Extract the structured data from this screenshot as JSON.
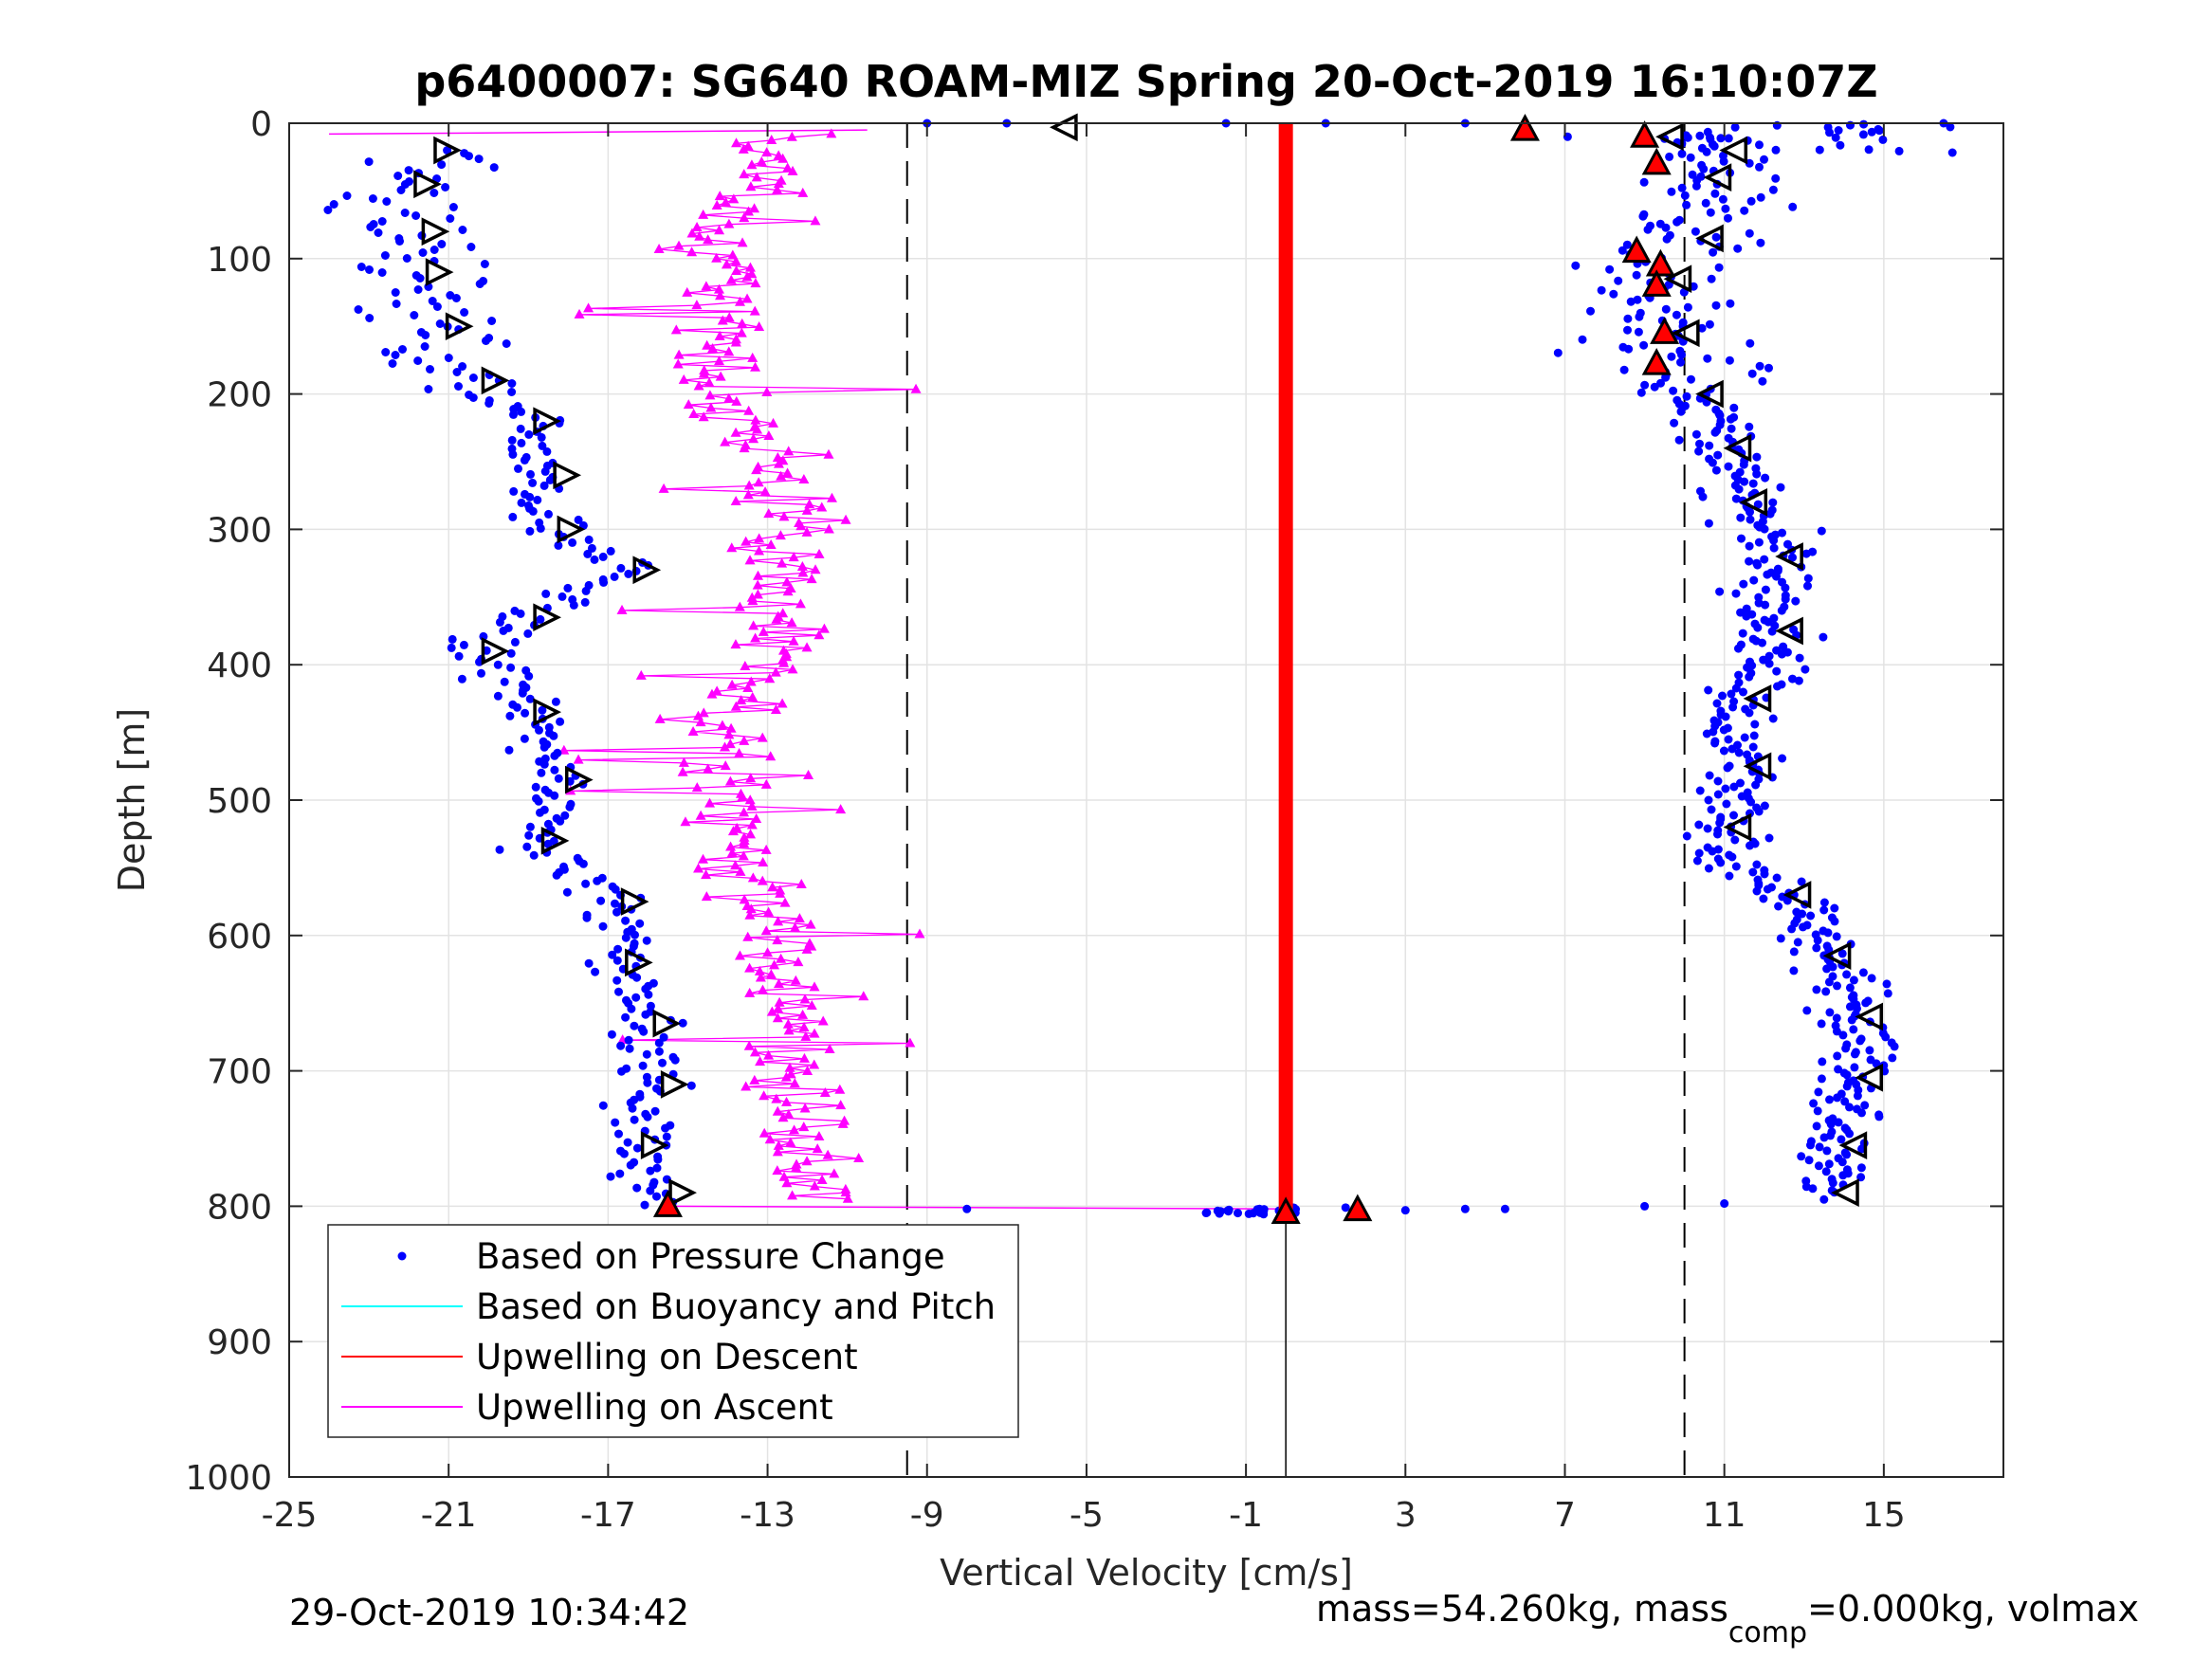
{
  "chart_data": {
    "type": "scatter",
    "title": "p6400007: SG640 ROAM-MIZ Spring 20-Oct-2019 16:10:07Z",
    "xlabel": "Vertical Velocity [cm/s]",
    "ylabel": "Depth [m]",
    "xlim": [
      -25,
      18
    ],
    "ylim": [
      1000,
      0
    ],
    "y_reversed": true,
    "grid": true,
    "x_ticks": [
      -25,
      -21,
      -17,
      -13,
      -9,
      -5,
      -1,
      3,
      7,
      11,
      15
    ],
    "y_ticks": [
      0,
      100,
      200,
      300,
      400,
      500,
      600,
      700,
      800,
      900,
      1000
    ],
    "legend": {
      "placement": "lower-left",
      "entries": [
        {
          "label": "Based on Pressure Change",
          "color": "#0000ff",
          "marker": "dot"
        },
        {
          "label": "Based on Buoyancy and Pitch",
          "color": "#00ffff",
          "marker": "line"
        },
        {
          "label": "Upwelling on Descent",
          "color": "#ff0000",
          "marker": "line"
        },
        {
          "label": "Upwelling on Ascent",
          "color": "#ff00ff",
          "marker": "line"
        }
      ]
    },
    "reference_lines": {
      "dashed_x": [
        -9.5,
        10
      ],
      "solid_x": [
        0
      ]
    },
    "series": [
      {
        "name": "Based on Pressure Change",
        "color": "#0000ff",
        "marker": "dot",
        "descent_points": [
          [
            -21.5,
            20
          ],
          [
            -21,
            30
          ],
          [
            -22,
            45
          ],
          [
            -22.5,
            60
          ],
          [
            -21.8,
            80
          ],
          [
            -22.3,
            95
          ],
          [
            -21.7,
            110
          ],
          [
            -21.5,
            130
          ],
          [
            -21.2,
            150
          ],
          [
            -21.4,
            170
          ],
          [
            -20.3,
            190
          ],
          [
            -19.5,
            205
          ],
          [
            -19,
            220
          ],
          [
            -18.7,
            240
          ],
          [
            -18.5,
            260
          ],
          [
            -18.8,
            280
          ],
          [
            -18.4,
            300
          ],
          [
            -17.5,
            315
          ],
          [
            -16.5,
            330
          ],
          [
            -17.8,
            345
          ],
          [
            -19,
            365
          ],
          [
            -20,
            380
          ],
          [
            -20.3,
            390
          ],
          [
            -19.5,
            410
          ],
          [
            -19,
            435
          ],
          [
            -18.7,
            460
          ],
          [
            -18.2,
            485
          ],
          [
            -18.5,
            510
          ],
          [
            -18.8,
            530
          ],
          [
            -17.8,
            555
          ],
          [
            -16.8,
            575
          ],
          [
            -16.6,
            600
          ],
          [
            -16.7,
            620
          ],
          [
            -16.3,
            645
          ],
          [
            -16,
            665
          ],
          [
            -15.9,
            690
          ],
          [
            -15.8,
            710
          ],
          [
            -16.1,
            730
          ],
          [
            -16.3,
            755
          ],
          [
            -16,
            775
          ],
          [
            -15.6,
            790
          ],
          [
            -15.5,
            800
          ]
        ],
        "ascent_points": [
          [
            9.3,
            10
          ],
          [
            11,
            20
          ],
          [
            10.5,
            40
          ],
          [
            10,
            65
          ],
          [
            10.3,
            85
          ],
          [
            9.3,
            100
          ],
          [
            9.5,
            115
          ],
          [
            9.6,
            135
          ],
          [
            9.7,
            155
          ],
          [
            9.5,
            175
          ],
          [
            10.3,
            200
          ],
          [
            10.6,
            215
          ],
          [
            11,
            240
          ],
          [
            11.7,
            260
          ],
          [
            11.4,
            280
          ],
          [
            12,
            300
          ],
          [
            12.3,
            320
          ],
          [
            12,
            350
          ],
          [
            12.3,
            375
          ],
          [
            12,
            400
          ],
          [
            11.5,
            425
          ],
          [
            11,
            450
          ],
          [
            11.5,
            475
          ],
          [
            11.3,
            500
          ],
          [
            11,
            520
          ],
          [
            11.5,
            545
          ],
          [
            12.5,
            570
          ],
          [
            13.2,
            590
          ],
          [
            13.5,
            615
          ],
          [
            14.1,
            635
          ],
          [
            14.3,
            660
          ],
          [
            14.5,
            685
          ],
          [
            14.3,
            705
          ],
          [
            14,
            730
          ],
          [
            13.9,
            755
          ],
          [
            13.8,
            775
          ],
          [
            13.7,
            790
          ]
        ],
        "surface_points": [
          [
            -9,
            0
          ],
          [
            -7,
            0
          ],
          [
            -1.5,
            0
          ],
          [
            1,
            0
          ],
          [
            4.5,
            0
          ],
          [
            16.5,
            0
          ]
        ],
        "bottom_points": [
          [
            -8,
            802
          ],
          [
            -2,
            805
          ],
          [
            1.5,
            801
          ],
          [
            3,
            803
          ],
          [
            4.5,
            802
          ],
          [
            5.5,
            802
          ],
          [
            9,
            800
          ],
          [
            11,
            798
          ],
          [
            13.5,
            795
          ]
        ]
      },
      {
        "name": "Upwelling on Ascent",
        "color": "#ff00ff",
        "marker": "triangle",
        "points": [
          [
            -24,
            5
          ],
          [
            -11,
            8
          ],
          [
            -13.5,
            15
          ],
          [
            -12.5,
            30
          ],
          [
            -13,
            45
          ],
          [
            -13.8,
            60
          ],
          [
            -14,
            80
          ],
          [
            -14.5,
            100
          ],
          [
            -14,
            120
          ],
          [
            -13.8,
            140
          ],
          [
            -14.2,
            165
          ],
          [
            -14,
            190
          ],
          [
            -13.5,
            215
          ],
          [
            -13,
            240
          ],
          [
            -12.5,
            265
          ],
          [
            -12.3,
            290
          ],
          [
            -12.5,
            315
          ],
          [
            -12.8,
            340
          ],
          [
            -12.5,
            360
          ],
          [
            -12.7,
            385
          ],
          [
            -13.3,
            410
          ],
          [
            -13.9,
            440
          ],
          [
            -14.2,
            470
          ],
          [
            -14,
            500
          ],
          [
            -13.8,
            525
          ],
          [
            -13.5,
            555
          ],
          [
            -13,
            580
          ],
          [
            -12.5,
            610
          ],
          [
            -12.3,
            640
          ],
          [
            -12,
            670
          ],
          [
            -12.2,
            700
          ],
          [
            -12.3,
            725
          ],
          [
            -12,
            750
          ],
          [
            -12,
            780
          ],
          [
            -12,
            795
          ],
          [
            -15.5,
            800
          ]
        ]
      },
      {
        "name": "Upwelling on Descent",
        "color": "#ff0000",
        "marker": "line",
        "points": [
          [
            0,
            0
          ],
          [
            0,
            805
          ]
        ]
      }
    ],
    "red_triangles": [
      [
        6,
        5
      ],
      [
        9,
        10
      ],
      [
        9.3,
        30
      ],
      [
        8.8,
        95
      ],
      [
        9.4,
        105
      ],
      [
        9.3,
        120
      ],
      [
        9.5,
        155
      ],
      [
        9.3,
        178
      ],
      [
        0,
        805
      ],
      [
        1.8,
        803
      ],
      [
        -15.5,
        800
      ]
    ]
  },
  "footer": {
    "timestamp": "29-Oct-2019 10:34:42",
    "mass_text": "mass=54.260kg, mass",
    "mass_sub": "comp",
    "mass_rest": "=0.000kg, volmax"
  }
}
